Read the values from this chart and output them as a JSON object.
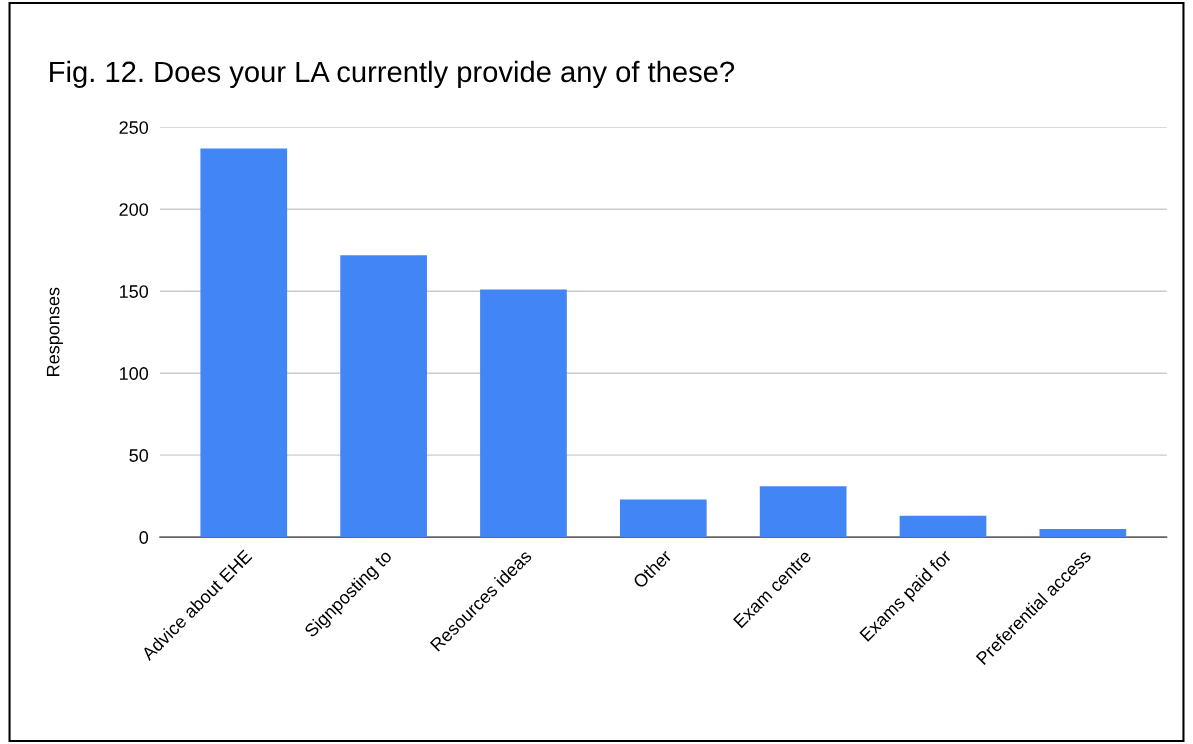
{
  "chart_data": {
    "type": "bar",
    "title": "Fig. 12. Does your LA currently provide any of these?",
    "ylabel": "Responses",
    "categories": [
      "Advice about EHE",
      "Signposting to",
      "Resources ideas",
      "Other",
      "Exam centre",
      "Exams paid for",
      "Preferential access"
    ],
    "values": [
      237,
      172,
      151,
      23,
      31,
      13,
      5
    ],
    "color": "#4285f4",
    "ylim": [
      0,
      250
    ],
    "yticks": [
      0,
      50,
      100,
      150,
      200,
      250
    ],
    "grid": "y",
    "legend": false
  }
}
